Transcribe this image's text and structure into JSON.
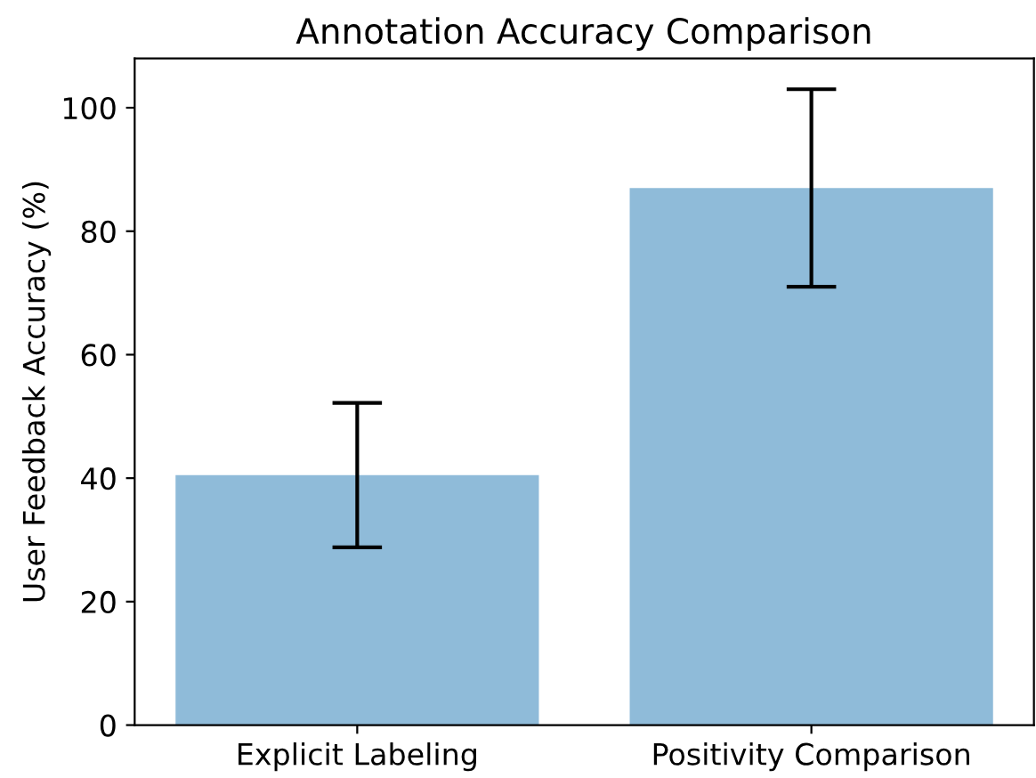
{
  "chart_data": {
    "type": "bar",
    "title": "Annotation Accuracy Comparison",
    "ylabel": "User Feedback Accuracy (%)",
    "categories": [
      "Explicit Labeling",
      "Positivity Comparison"
    ],
    "values": [
      40.5,
      87
    ],
    "errors": [
      11.7,
      16
    ],
    "color": "#8fbbd9",
    "ylim": [
      0,
      108
    ],
    "yticks": [
      0,
      20,
      40,
      60,
      80,
      100
    ],
    "grid": false
  }
}
